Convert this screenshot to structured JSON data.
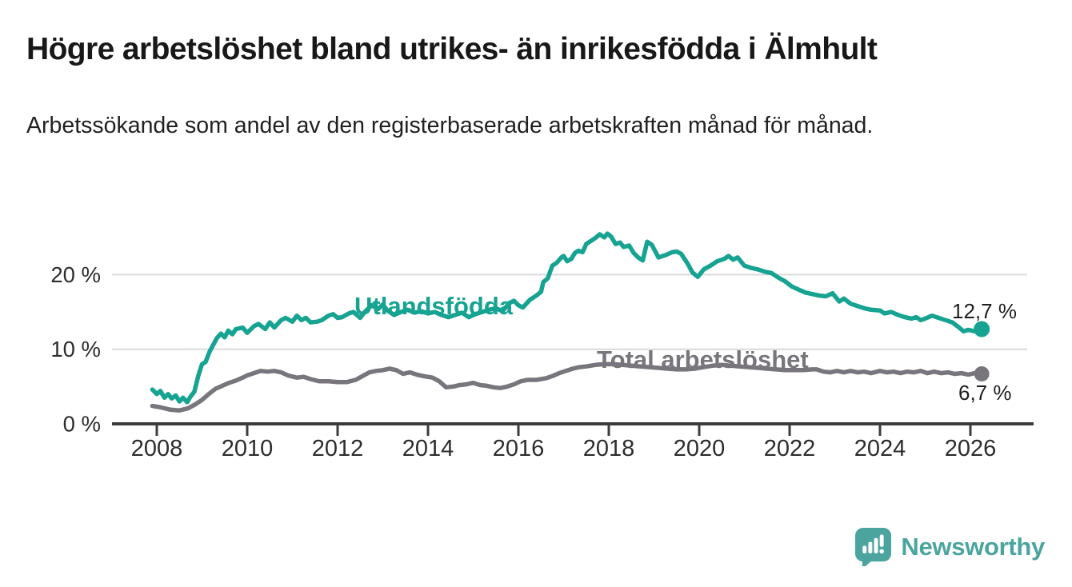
{
  "header": {
    "title": "Högre arbetslöshet bland utrikes- än inrikesfödda i Älmhult",
    "subtitle": "Arbetssökande som andel av den registerbaserade arbetskraften månad för månad."
  },
  "footer": {
    "brand": "Newsworthy",
    "logo_icon": "newsworthy-speech-bubble-bar-chart-icon"
  },
  "colors": {
    "accent_teal": "#17A392",
    "line_gray": "#78767C",
    "grid_gray": "#D9D9D9",
    "axis_dark": "#3C3C3C",
    "text_dark": "#1E1E1E",
    "brand_teal": "#4BA59E"
  },
  "chart_data": {
    "type": "line",
    "unit": "%",
    "x_unit": "year (monthly data)",
    "xlim": [
      2007.6,
      2027.2
    ],
    "ylim": [
      0,
      27
    ],
    "grid": "horizontal",
    "legend_position": "inline-labels-on-lines",
    "x_ticks": [
      2008,
      2010,
      2012,
      2014,
      2016,
      2018,
      2020,
      2022,
      2024,
      2026
    ],
    "x_tick_labels": [
      "2008",
      "2010",
      "2012",
      "2014",
      "2016",
      "2018",
      "2020",
      "2022",
      "2024",
      "2026"
    ],
    "y_ticks": [
      {
        "value": 0,
        "label": "0 %",
        "grid": false
      },
      {
        "value": 10,
        "label": "10 %",
        "grid": true
      },
      {
        "value": 20,
        "label": "20 %",
        "grid": true
      }
    ],
    "series": [
      {
        "name": "Utlandsfödda",
        "color": "#17A392",
        "end_value": 12.7,
        "end_label": "12,7 %",
        "points": [
          [
            2007.9,
            4.6
          ],
          [
            2008.0,
            4.0
          ],
          [
            2008.08,
            4.4
          ],
          [
            2008.17,
            3.5
          ],
          [
            2008.25,
            4.0
          ],
          [
            2008.33,
            3.4
          ],
          [
            2008.42,
            3.8
          ],
          [
            2008.5,
            3.0
          ],
          [
            2008.58,
            3.5
          ],
          [
            2008.67,
            2.9
          ],
          [
            2008.75,
            3.7
          ],
          [
            2008.83,
            4.3
          ],
          [
            2008.92,
            6.5
          ],
          [
            2009.0,
            8.0
          ],
          [
            2009.08,
            8.3
          ],
          [
            2009.17,
            9.7
          ],
          [
            2009.25,
            10.6
          ],
          [
            2009.33,
            11.5
          ],
          [
            2009.42,
            12.1
          ],
          [
            2009.5,
            11.6
          ],
          [
            2009.58,
            12.5
          ],
          [
            2009.67,
            12.0
          ],
          [
            2009.75,
            12.7
          ],
          [
            2009.9,
            12.9
          ],
          [
            2010.0,
            12.2
          ],
          [
            2010.15,
            13.1
          ],
          [
            2010.25,
            13.4
          ],
          [
            2010.4,
            12.7
          ],
          [
            2010.5,
            13.6
          ],
          [
            2010.6,
            12.9
          ],
          [
            2010.75,
            13.9
          ],
          [
            2010.85,
            14.2
          ],
          [
            2011.0,
            13.7
          ],
          [
            2011.1,
            14.5
          ],
          [
            2011.2,
            13.9
          ],
          [
            2011.3,
            14.2
          ],
          [
            2011.4,
            13.6
          ],
          [
            2011.55,
            13.7
          ],
          [
            2011.65,
            13.9
          ],
          [
            2011.8,
            14.5
          ],
          [
            2011.9,
            14.7
          ],
          [
            2012.0,
            14.2
          ],
          [
            2012.1,
            14.3
          ],
          [
            2012.25,
            14.8
          ],
          [
            2012.35,
            15.0
          ],
          [
            2012.5,
            14.2
          ],
          [
            2012.6,
            15.0
          ],
          [
            2012.75,
            15.9
          ],
          [
            2012.9,
            15.4
          ],
          [
            2013.0,
            16.0
          ],
          [
            2013.1,
            15.2
          ],
          [
            2013.25,
            14.6
          ],
          [
            2013.4,
            15.0
          ],
          [
            2013.55,
            15.3
          ],
          [
            2013.7,
            14.9
          ],
          [
            2013.85,
            15.1
          ],
          [
            2014.0,
            14.8
          ],
          [
            2014.15,
            15.0
          ],
          [
            2014.3,
            14.6
          ],
          [
            2014.45,
            14.3
          ],
          [
            2014.6,
            14.6
          ],
          [
            2014.75,
            14.9
          ],
          [
            2014.9,
            14.3
          ],
          [
            2015.05,
            14.7
          ],
          [
            2015.2,
            15.0
          ],
          [
            2015.35,
            15.3
          ],
          [
            2015.5,
            15.5
          ],
          [
            2015.65,
            15.1
          ],
          [
            2015.8,
            16.2
          ],
          [
            2015.9,
            16.5
          ],
          [
            2016.0,
            15.9
          ],
          [
            2016.1,
            15.6
          ],
          [
            2016.25,
            16.6
          ],
          [
            2016.4,
            17.2
          ],
          [
            2016.5,
            17.7
          ],
          [
            2016.55,
            19.0
          ],
          [
            2016.65,
            19.5
          ],
          [
            2016.75,
            21.2
          ],
          [
            2016.85,
            21.6
          ],
          [
            2016.95,
            22.3
          ],
          [
            2017.0,
            22.5
          ],
          [
            2017.08,
            21.8
          ],
          [
            2017.17,
            22.1
          ],
          [
            2017.25,
            22.9
          ],
          [
            2017.33,
            23.2
          ],
          [
            2017.42,
            23.0
          ],
          [
            2017.5,
            24.1
          ],
          [
            2017.6,
            24.5
          ],
          [
            2017.7,
            24.9
          ],
          [
            2017.8,
            25.4
          ],
          [
            2017.9,
            25.0
          ],
          [
            2017.97,
            25.5
          ],
          [
            2018.05,
            25.1
          ],
          [
            2018.15,
            24.1
          ],
          [
            2018.25,
            24.3
          ],
          [
            2018.33,
            23.7
          ],
          [
            2018.45,
            23.9
          ],
          [
            2018.55,
            22.9
          ],
          [
            2018.65,
            22.3
          ],
          [
            2018.75,
            21.9
          ],
          [
            2018.85,
            24.4
          ],
          [
            2018.95,
            24.0
          ],
          [
            2019.1,
            22.3
          ],
          [
            2019.25,
            22.6
          ],
          [
            2019.4,
            23.0
          ],
          [
            2019.5,
            23.1
          ],
          [
            2019.6,
            22.8
          ],
          [
            2019.75,
            21.4
          ],
          [
            2019.85,
            20.3
          ],
          [
            2019.97,
            19.7
          ],
          [
            2020.1,
            20.7
          ],
          [
            2020.25,
            21.2
          ],
          [
            2020.4,
            21.8
          ],
          [
            2020.55,
            22.1
          ],
          [
            2020.65,
            22.5
          ],
          [
            2020.75,
            22.0
          ],
          [
            2020.85,
            22.3
          ],
          [
            2021.0,
            21.2
          ],
          [
            2021.15,
            20.9
          ],
          [
            2021.3,
            20.7
          ],
          [
            2021.45,
            20.4
          ],
          [
            2021.6,
            20.2
          ],
          [
            2021.75,
            19.6
          ],
          [
            2021.9,
            19.1
          ],
          [
            2022.05,
            18.4
          ],
          [
            2022.2,
            18.0
          ],
          [
            2022.35,
            17.6
          ],
          [
            2022.5,
            17.4
          ],
          [
            2022.65,
            17.2
          ],
          [
            2022.8,
            17.1
          ],
          [
            2022.95,
            17.5
          ],
          [
            2023.1,
            16.4
          ],
          [
            2023.2,
            16.8
          ],
          [
            2023.35,
            16.1
          ],
          [
            2023.5,
            15.8
          ],
          [
            2023.65,
            15.5
          ],
          [
            2023.8,
            15.3
          ],
          [
            2024.0,
            15.2
          ],
          [
            2024.1,
            14.8
          ],
          [
            2024.25,
            15.0
          ],
          [
            2024.4,
            14.6
          ],
          [
            2024.55,
            14.3
          ],
          [
            2024.7,
            14.1
          ],
          [
            2024.8,
            14.3
          ],
          [
            2024.9,
            13.9
          ],
          [
            2025.0,
            14.1
          ],
          [
            2025.15,
            14.5
          ],
          [
            2025.3,
            14.2
          ],
          [
            2025.45,
            13.9
          ],
          [
            2025.6,
            13.6
          ],
          [
            2025.75,
            12.9
          ],
          [
            2025.85,
            12.4
          ],
          [
            2025.95,
            12.6
          ],
          [
            2026.1,
            12.4
          ],
          [
            2026.25,
            12.7
          ]
        ]
      },
      {
        "name": "Total arbetslöshet",
        "color": "#78767C",
        "end_value": 6.7,
        "end_label": "6,7 %",
        "points": [
          [
            2007.9,
            2.4
          ],
          [
            2008.1,
            2.2
          ],
          [
            2008.3,
            1.9
          ],
          [
            2008.5,
            1.8
          ],
          [
            2008.7,
            2.1
          ],
          [
            2008.85,
            2.6
          ],
          [
            2009.0,
            3.2
          ],
          [
            2009.15,
            4.0
          ],
          [
            2009.3,
            4.7
          ],
          [
            2009.45,
            5.1
          ],
          [
            2009.6,
            5.5
          ],
          [
            2009.75,
            5.8
          ],
          [
            2009.9,
            6.2
          ],
          [
            2010.0,
            6.5
          ],
          [
            2010.2,
            6.9
          ],
          [
            2010.3,
            7.1
          ],
          [
            2010.45,
            7.0
          ],
          [
            2010.6,
            7.1
          ],
          [
            2010.75,
            6.9
          ],
          [
            2010.9,
            6.5
          ],
          [
            2011.1,
            6.2
          ],
          [
            2011.25,
            6.3
          ],
          [
            2011.4,
            6.0
          ],
          [
            2011.6,
            5.7
          ],
          [
            2011.8,
            5.7
          ],
          [
            2012.0,
            5.6
          ],
          [
            2012.2,
            5.6
          ],
          [
            2012.4,
            5.9
          ],
          [
            2012.55,
            6.4
          ],
          [
            2012.7,
            6.9
          ],
          [
            2012.85,
            7.1
          ],
          [
            2013.0,
            7.2
          ],
          [
            2013.15,
            7.4
          ],
          [
            2013.3,
            7.2
          ],
          [
            2013.45,
            6.7
          ],
          [
            2013.6,
            6.9
          ],
          [
            2013.75,
            6.6
          ],
          [
            2013.9,
            6.4
          ],
          [
            2014.1,
            6.2
          ],
          [
            2014.25,
            5.7
          ],
          [
            2014.4,
            4.9
          ],
          [
            2014.55,
            5.0
          ],
          [
            2014.7,
            5.2
          ],
          [
            2014.85,
            5.3
          ],
          [
            2015.0,
            5.5
          ],
          [
            2015.15,
            5.2
          ],
          [
            2015.3,
            5.1
          ],
          [
            2015.45,
            4.9
          ],
          [
            2015.6,
            4.8
          ],
          [
            2015.75,
            5.0
          ],
          [
            2015.9,
            5.3
          ],
          [
            2016.05,
            5.7
          ],
          [
            2016.2,
            5.9
          ],
          [
            2016.4,
            5.9
          ],
          [
            2016.6,
            6.1
          ],
          [
            2016.75,
            6.4
          ],
          [
            2016.9,
            6.8
          ],
          [
            2017.05,
            7.1
          ],
          [
            2017.2,
            7.4
          ],
          [
            2017.35,
            7.6
          ],
          [
            2017.5,
            7.7
          ],
          [
            2017.7,
            7.9
          ],
          [
            2017.9,
            8.0
          ],
          [
            2018.1,
            8.0
          ],
          [
            2018.3,
            7.9
          ],
          [
            2018.5,
            7.8
          ],
          [
            2018.7,
            7.7
          ],
          [
            2018.9,
            7.6
          ],
          [
            2019.1,
            7.5
          ],
          [
            2019.3,
            7.4
          ],
          [
            2019.5,
            7.3
          ],
          [
            2019.7,
            7.3
          ],
          [
            2019.9,
            7.4
          ],
          [
            2020.1,
            7.6
          ],
          [
            2020.3,
            7.8
          ],
          [
            2020.5,
            7.9
          ],
          [
            2020.7,
            7.8
          ],
          [
            2020.9,
            7.7
          ],
          [
            2021.1,
            7.6
          ],
          [
            2021.3,
            7.5
          ],
          [
            2021.5,
            7.4
          ],
          [
            2021.7,
            7.3
          ],
          [
            2021.9,
            7.2
          ],
          [
            2022.1,
            7.2
          ],
          [
            2022.3,
            7.2
          ],
          [
            2022.5,
            7.3
          ],
          [
            2022.6,
            7.3
          ],
          [
            2022.75,
            7.0
          ],
          [
            2022.9,
            6.9
          ],
          [
            2023.05,
            7.1
          ],
          [
            2023.2,
            6.9
          ],
          [
            2023.35,
            7.1
          ],
          [
            2023.5,
            6.9
          ],
          [
            2023.65,
            7.0
          ],
          [
            2023.8,
            6.8
          ],
          [
            2024.0,
            7.1
          ],
          [
            2024.15,
            6.9
          ],
          [
            2024.3,
            7.0
          ],
          [
            2024.45,
            6.8
          ],
          [
            2024.6,
            7.0
          ],
          [
            2024.75,
            6.9
          ],
          [
            2024.9,
            7.1
          ],
          [
            2025.05,
            6.8
          ],
          [
            2025.2,
            7.0
          ],
          [
            2025.35,
            6.8
          ],
          [
            2025.5,
            6.9
          ],
          [
            2025.65,
            6.7
          ],
          [
            2025.8,
            6.8
          ],
          [
            2025.95,
            6.6
          ],
          [
            2026.1,
            6.8
          ],
          [
            2026.25,
            6.7
          ]
        ]
      }
    ]
  }
}
